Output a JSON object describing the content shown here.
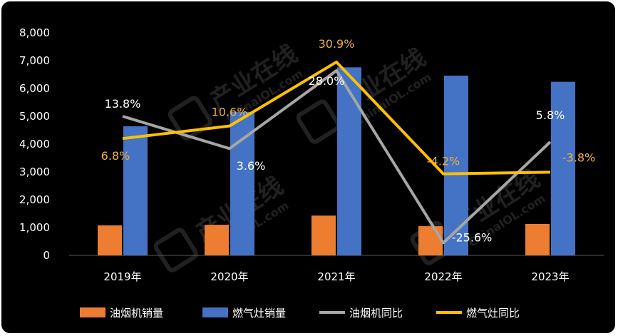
{
  "chart_data": {
    "type": "bar",
    "categories": [
      "2019年",
      "2020年",
      "2021年",
      "2022年",
      "2023年"
    ],
    "ylim": [
      0,
      8000
    ],
    "yticks": [
      0,
      1000,
      2000,
      3000,
      4000,
      5000,
      6000,
      7000,
      8000
    ],
    "ytick_labels": [
      "0",
      "1,000",
      "2,000",
      "3,000",
      "4,000",
      "5,000",
      "6,000",
      "7,000",
      "8,000"
    ],
    "grid": false,
    "legend_position": "bottom",
    "series": [
      {
        "name": "油烟机销量",
        "kind": "bar",
        "color": "#ed7d31",
        "values": [
          1080,
          1100,
          1430,
          1050,
          1130
        ]
      },
      {
        "name": "燃气灶销量",
        "kind": "bar",
        "color": "#4472c4",
        "values": [
          4640,
          5160,
          6760,
          6460,
          6240
        ]
      }
    ],
    "lines": [
      {
        "name": "油烟机同比",
        "color": "#a6a6a6",
        "label_color": "#ffffff",
        "positions": [
          5000,
          3840,
          6640,
          450,
          4080
        ],
        "labels": [
          "13.8%",
          "3.6%",
          "28.0%",
          "-25.6%",
          "5.8%"
        ]
      },
      {
        "name": "燃气灶同比",
        "color": "#ffc000",
        "label_color": "#f0b040",
        "positions": [
          4200,
          4650,
          6950,
          2930,
          2990
        ],
        "labels": [
          "6.8%",
          "10.6%",
          "30.9%",
          "-4.2%",
          "-3.8%"
        ]
      }
    ],
    "watermark": [
      "产业在线",
      "ChinaIOL.com"
    ]
  }
}
